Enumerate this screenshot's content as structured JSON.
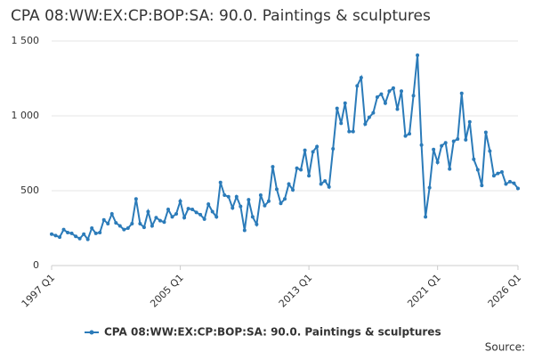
{
  "chart_data": {
    "type": "line",
    "title": "CPA 08:WW:EX:CP:BOP:SA: 90.0. Paintings & sculptures",
    "source": "Source:",
    "categories": [
      "1997 Q1",
      null,
      null,
      null,
      null,
      null,
      null,
      null,
      null,
      null,
      null,
      null,
      null,
      null,
      null,
      null,
      null,
      null,
      null,
      null,
      null,
      null,
      null,
      null,
      null,
      null,
      null,
      null,
      null,
      null,
      null,
      null,
      "2005 Q1",
      null,
      null,
      null,
      null,
      null,
      null,
      null,
      null,
      null,
      null,
      null,
      null,
      null,
      null,
      null,
      null,
      null,
      null,
      null,
      null,
      null,
      null,
      null,
      null,
      null,
      null,
      null,
      null,
      null,
      null,
      null,
      "2013 Q1",
      null,
      null,
      null,
      null,
      null,
      null,
      null,
      null,
      null,
      null,
      null,
      null,
      null,
      null,
      null,
      null,
      null,
      null,
      null,
      null,
      null,
      null,
      null,
      null,
      null,
      null,
      null,
      null,
      null,
      null,
      null,
      "2021 Q1",
      null,
      null,
      null,
      null,
      null,
      null,
      null,
      null,
      null,
      null,
      null,
      null,
      null,
      null,
      null,
      null,
      null,
      null,
      null,
      "2026 Q1"
    ],
    "series": [
      {
        "name": "CPA 08:WW:EX:CP:BOP:SA: 90.0. Paintings & sculptures",
        "color": "#2b7bb9",
        "values": [
          210,
          200,
          190,
          240,
          220,
          215,
          195,
          180,
          210,
          175,
          250,
          215,
          220,
          305,
          280,
          345,
          285,
          265,
          240,
          250,
          280,
          445,
          280,
          255,
          360,
          265,
          320,
          300,
          290,
          375,
          325,
          345,
          430,
          320,
          380,
          375,
          355,
          340,
          310,
          410,
          360,
          325,
          555,
          470,
          460,
          385,
          460,
          395,
          235,
          440,
          325,
          275,
          470,
          400,
          430,
          660,
          510,
          415,
          445,
          545,
          505,
          650,
          640,
          770,
          600,
          760,
          795,
          545,
          565,
          525,
          780,
          1050,
          950,
          1085,
          895,
          895,
          1200,
          1255,
          945,
          990,
          1020,
          1125,
          1145,
          1085,
          1165,
          1185,
          1045,
          1165,
          865,
          880,
          1135,
          1405,
          805,
          325,
          520,
          775,
          690,
          800,
          820,
          645,
          830,
          845,
          1150,
          840,
          960,
          710,
          640,
          535,
          890,
          765,
          600,
          615,
          625,
          545,
          560,
          550,
          515
        ]
      }
    ],
    "ylim": [
      0,
      1500
    ],
    "yticks": [
      0,
      500,
      {
        "value": 1000,
        "label": "1 000"
      },
      {
        "value": 1500,
        "label": "1 500"
      }
    ],
    "grid": true,
    "legend": "bottom"
  }
}
